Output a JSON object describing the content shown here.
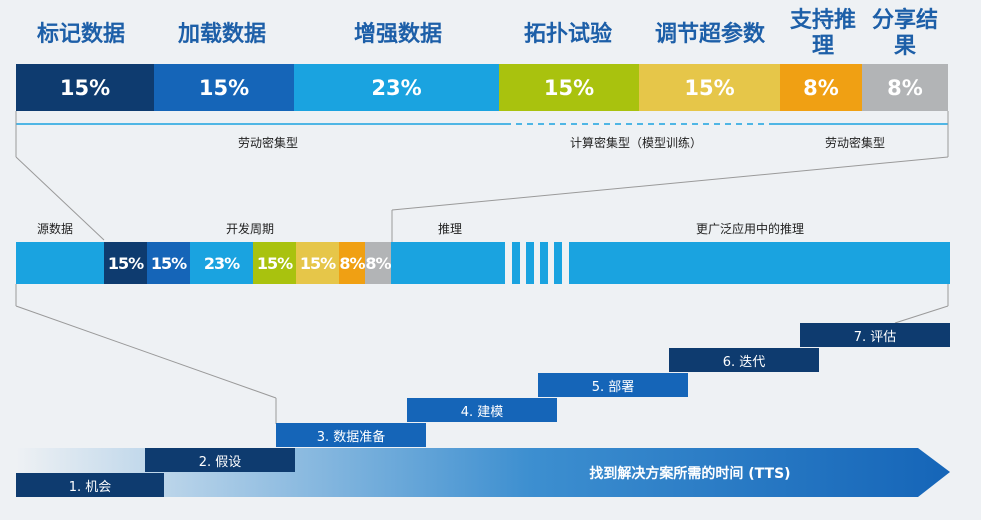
{
  "phases": [
    {
      "label": "标记数据",
      "pct": "15%",
      "color": "#0e3b6f",
      "text_color": "#ffffff"
    },
    {
      "label": "加载数据",
      "pct": "15%",
      "color": "#1565b8",
      "text_color": "#ffffff"
    },
    {
      "label": "增强数据",
      "pct": "23%",
      "color": "#1aa3e0",
      "text_color": "#ffffff"
    },
    {
      "label": "拓扑试验",
      "pct": "15%",
      "color": "#a9c20e",
      "text_color": "#ffffff"
    },
    {
      "label": "调节超参数",
      "pct": "15%",
      "color": "#e6c649",
      "text_color": "#ffffff"
    },
    {
      "label": "支持推理",
      "pct": "8%",
      "color": "#f0a013",
      "text_color": "#ffffff"
    },
    {
      "label": "分享结果",
      "pct": "8%",
      "color": "#b2b4b6",
      "text_color": "#ffffff"
    }
  ],
  "top_captions": {
    "labor_left": "劳动密集型",
    "compute": "计算密集型（模型训练）",
    "labor_right": "劳动密集型"
  },
  "timeline": {
    "source_data": "源数据",
    "dev_cycle": "开发周期",
    "inference": "推理",
    "broad_inference": "更广泛应用中的推理"
  },
  "steps": [
    {
      "label": "1. 机会"
    },
    {
      "label": "2. 假设"
    },
    {
      "label": "3. 数据准备"
    },
    {
      "label": "4. 建模"
    },
    {
      "label": "5. 部署"
    },
    {
      "label": "6. 迭代"
    },
    {
      "label": "7. 评估"
    }
  ],
  "arrow_label": "找到解决方案所需的时间 (TTS)",
  "colors": {
    "bar_blue": "#1aa3e0",
    "step_blue": "#1565b8",
    "step_dark": "#0e3b6f",
    "line": "#1aa3e0",
    "gray_line": "#9a9a9a"
  }
}
